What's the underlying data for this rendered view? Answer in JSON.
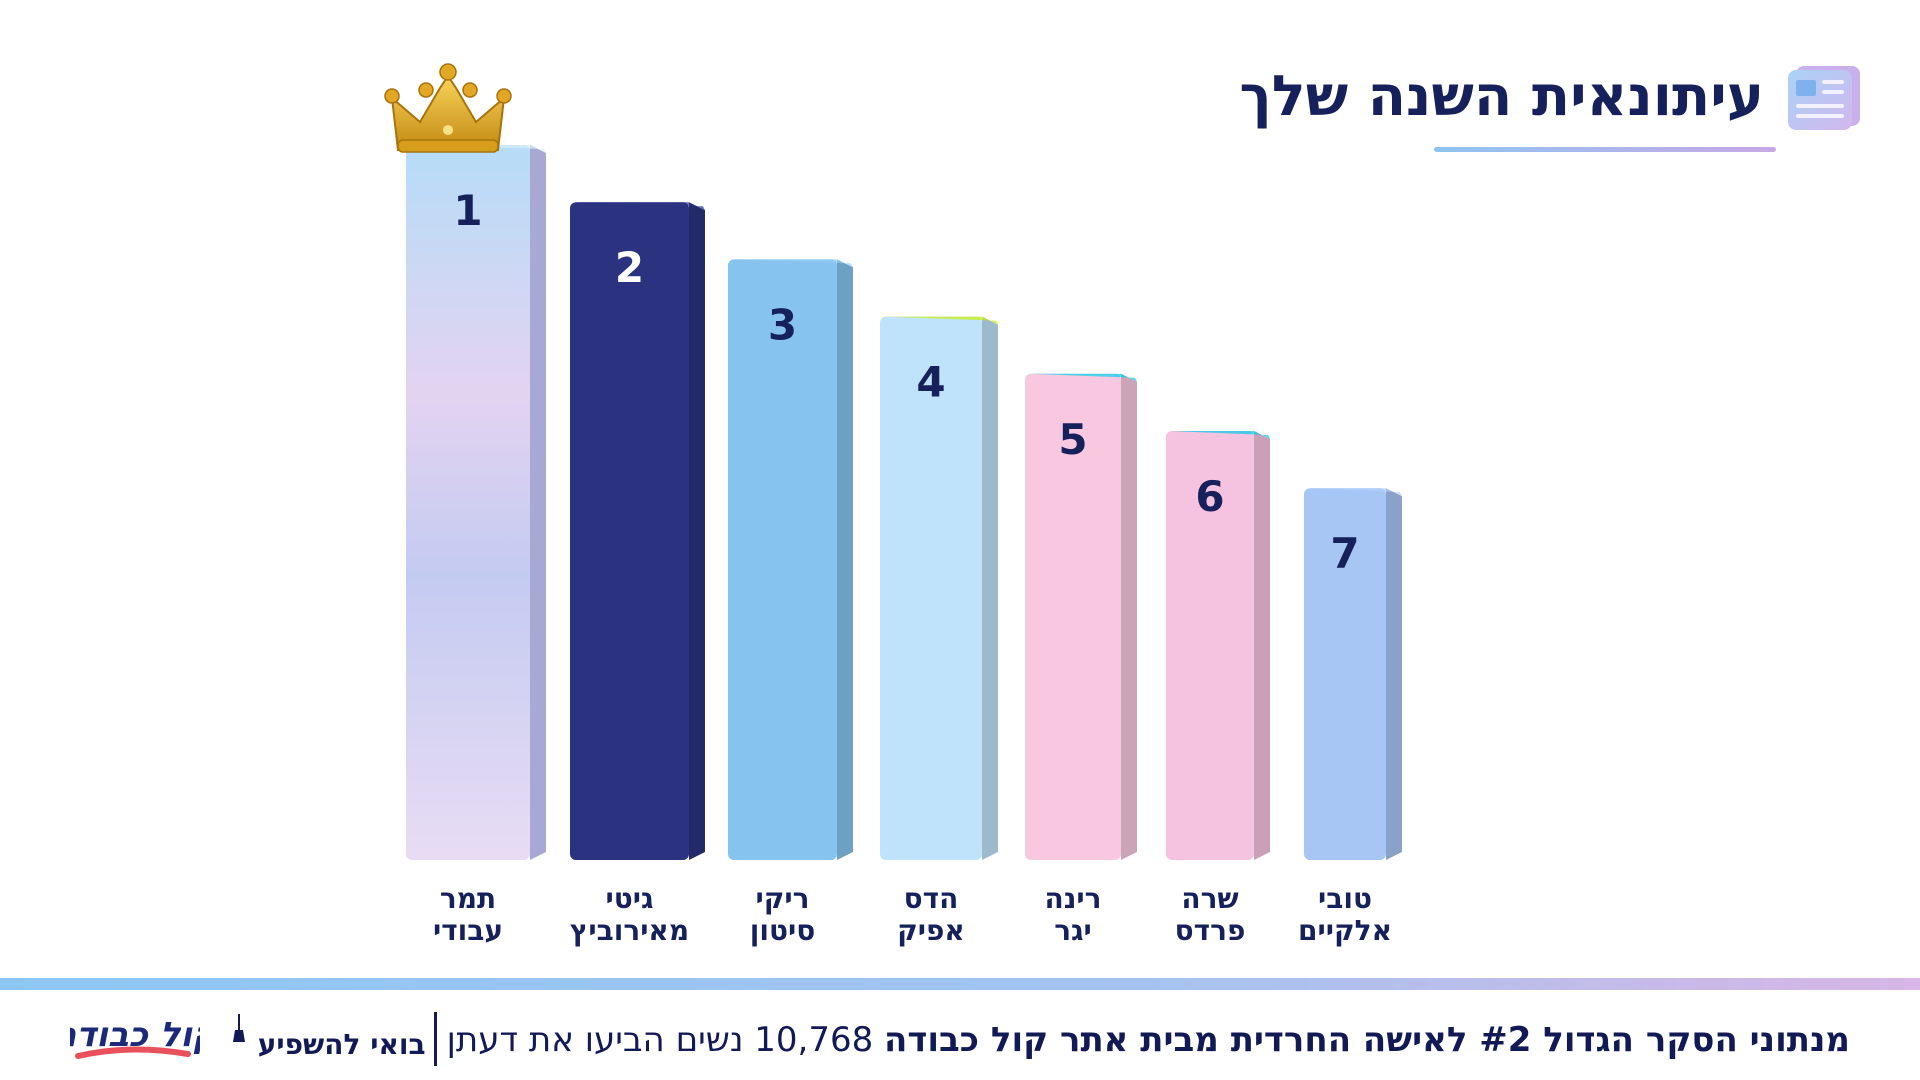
{
  "header": {
    "title": "עיתונאית השנה שלך",
    "icon": "newspaper-icon"
  },
  "chart_data": {
    "type": "bar",
    "title": "עיתונאית השנה שלך",
    "categories": [
      {
        "line1": "תמר",
        "line2": "עבודי",
        "rank": "1"
      },
      {
        "line1": "גיטי",
        "line2": "מאירוביץ",
        "rank": "2"
      },
      {
        "line1": "ריקי",
        "line2": "סיטון",
        "rank": "3"
      },
      {
        "line1": "הדס",
        "line2": "אפיק",
        "rank": "4"
      },
      {
        "line1": "רינה",
        "line2": "יגר",
        "rank": "5"
      },
      {
        "line1": "שרה",
        "line2": "פרדס",
        "rank": "6"
      },
      {
        "line1": "טובי",
        "line2": "אלקיים",
        "rank": "7"
      }
    ],
    "values": [
      100,
      92,
      84,
      76,
      68,
      60,
      52
    ],
    "ylim": [
      0,
      100
    ],
    "grid": false,
    "legend": "none",
    "colors": [
      "#cfd3f3",
      "#2b3380",
      "#86c3ef",
      "#bfe3fa",
      "#f7c8df",
      "#f5c3e0",
      "#a8c6f3"
    ],
    "winner_icon": "crown-icon"
  },
  "footer": {
    "survey_text_bold": "מנתוני הסקר הגדול #2 לאישה החרדית מבית אתר קול כבודה",
    "survey_text_rest": " 10,768 נשים הביעו את דעתן",
    "slogan": "בואי להשפיע",
    "logo_text": "קול כבודה",
    "logo_icon": "kol-kvoda-logo-icon"
  }
}
